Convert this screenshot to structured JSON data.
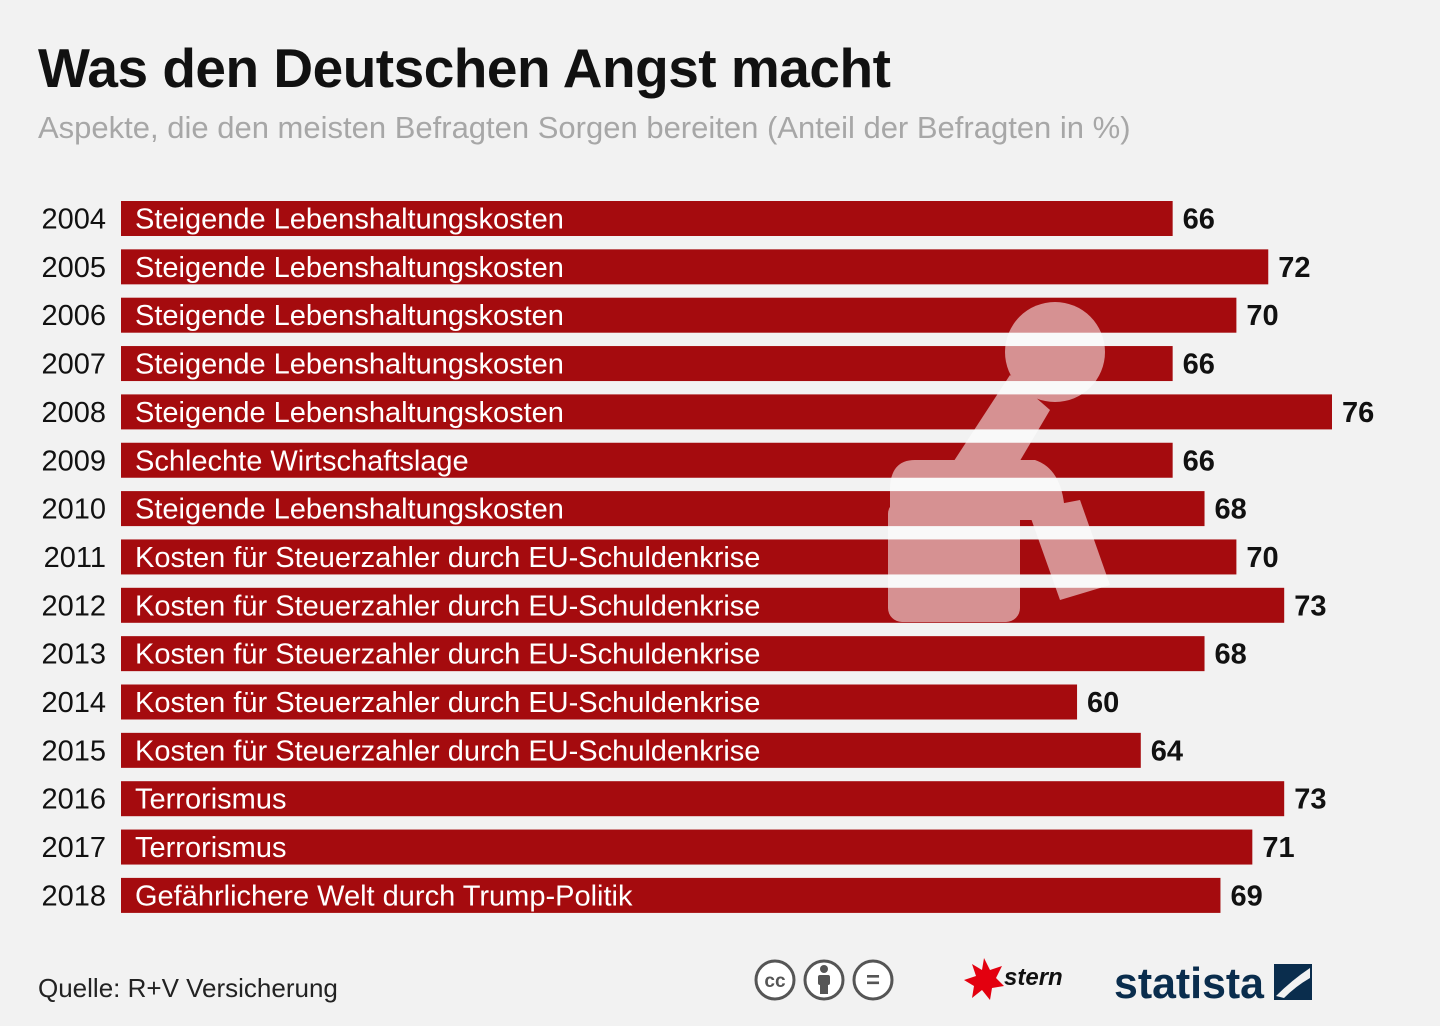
{
  "header": {
    "title": "Was den Deutschen Angst macht",
    "subtitle": "Aspekte, die den meisten Befragten Sorgen bereiten (Anteil der Befragten in %)"
  },
  "chart_data": {
    "type": "bar",
    "orientation": "horizontal",
    "title": "Was den Deutschen Angst macht",
    "subtitle": "Aspekte, die den meisten Befragten Sorgen bereiten (Anteil der Befragten in %)",
    "xlabel": "",
    "ylabel": "",
    "xlim": [
      0,
      76
    ],
    "grid": false,
    "categories": [
      "2004",
      "2005",
      "2006",
      "2007",
      "2008",
      "2009",
      "2010",
      "2011",
      "2012",
      "2013",
      "2014",
      "2015",
      "2016",
      "2017",
      "2018"
    ],
    "bar_labels": [
      "Steigende Lebenshaltungskosten",
      "Steigende Lebenshaltungskosten",
      "Steigende Lebenshaltungskosten",
      "Steigende Lebenshaltungskosten",
      "Steigende Lebenshaltungskosten",
      "Schlechte Wirtschaftslage",
      "Steigende Lebenshaltungskosten",
      "Kosten für Steuerzahler durch EU-Schuldenkrise",
      "Kosten für Steuerzahler durch EU-Schuldenkrise",
      "Kosten für Steuerzahler durch EU-Schuldenkrise",
      "Kosten für Steuerzahler durch EU-Schuldenkrise",
      "Kosten für Steuerzahler durch EU-Schuldenkrise",
      "Terrorismus",
      "Terrorismus",
      "Gefährlichere Welt durch Trump-Politik"
    ],
    "values": [
      66,
      72,
      70,
      66,
      76,
      66,
      68,
      70,
      73,
      68,
      60,
      64,
      73,
      71,
      69
    ],
    "bar_color": "#a50b0e"
  },
  "footer": {
    "source": "Quelle: R+V Versicherung",
    "license_icons": [
      "cc-icon",
      "attribution-icon",
      "no-derivatives-icon"
    ],
    "cc_text": "cc",
    "nd_text": "=",
    "stern_logo": "stern",
    "statista_logo": "statista"
  },
  "colors": {
    "background": "#f2f2f2",
    "bar": "#a50b0e",
    "title": "#111111",
    "subtitle": "#a7a7a7",
    "stern_red": "#e3000f",
    "statista_blue": "#0a2d4d"
  }
}
